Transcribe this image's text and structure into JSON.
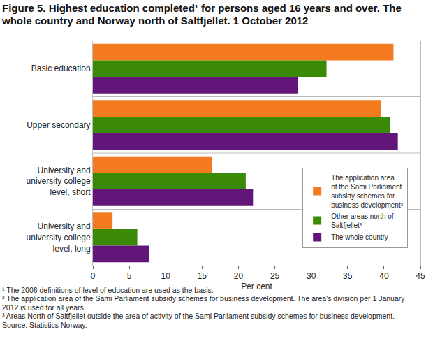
{
  "chart_data": {
    "type": "bar",
    "orientation": "horizontal",
    "title": "Figure 5. Highest education completed¹ for persons aged 16 years and over. The whole country and Norway north of Saltfjellet. 1 October 2012",
    "x_label": "Per cent",
    "categories": [
      "Basic education",
      "Upper secondary",
      "University and university college level, short",
      "University and university college level, long"
    ],
    "series": [
      {
        "name": "The application area of the Sami Parliament subsidy schemes for business development²",
        "color": "#f37a1f",
        "values": [
          41.3,
          39.6,
          16.4,
          2.7
        ]
      },
      {
        "name": "Other areas north of Saltfjellet³",
        "color": "#3a8a05",
        "values": [
          32.1,
          40.8,
          21.0,
          6.1
        ]
      },
      {
        "name": "The whole country",
        "color": "#63167a",
        "values": [
          28.2,
          41.9,
          22.0,
          7.7
        ]
      }
    ],
    "xlim": [
      0,
      45
    ],
    "xticks": [
      0,
      5,
      10,
      15,
      20,
      25,
      30,
      35,
      40,
      45
    ],
    "grid": false,
    "legend": "lower right",
    "notes": [
      "¹ The 2006 definitions of level of education are used as the basis.",
      "² The application area of the Sami Parliament subsidy schemes for business development. The area's division per 1 January 2012 is used for all years.",
      "³ Areas North of Saltfjellet outside the area of activity of the Sami Parliament subsidy schemes for business development.",
      "Source: Statistics Norway."
    ]
  }
}
